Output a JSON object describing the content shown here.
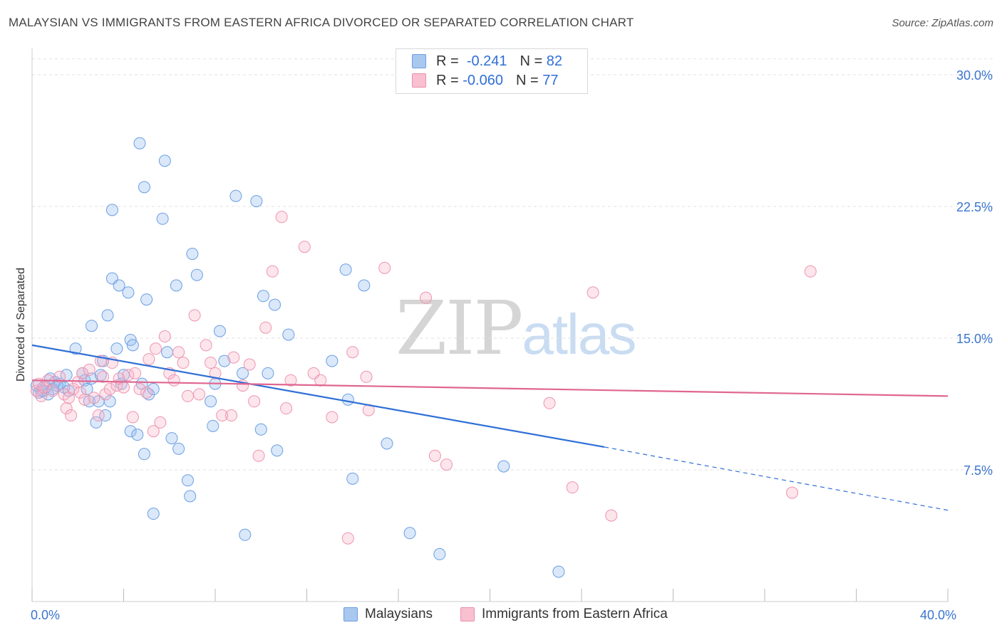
{
  "header": {
    "title": "MALAYSIAN VS IMMIGRANTS FROM EASTERN AFRICA DIVORCED OR SEPARATED CORRELATION CHART",
    "source": "Source: ZipAtlas.com"
  },
  "watermark": {
    "zip": "ZIP",
    "atlas": "atlas"
  },
  "legend": {
    "r_label": "R =",
    "n_label": "N =",
    "rows": [
      {
        "r": "-0.241",
        "n": "82",
        "color": "#a9c8f0",
        "border": "#6b9ee0"
      },
      {
        "r": "-0.060",
        "n": "77",
        "color": "#f8c0d0",
        "border": "#ea8fac"
      }
    ]
  },
  "bottom_legend": [
    {
      "label": "Malaysians",
      "color": "#a9c8f0",
      "border": "#6b9ee0"
    },
    {
      "label": "Immigrants from Eastern Africa",
      "color": "#f8c0d0",
      "border": "#ea8fac"
    }
  ],
  "colors": {
    "blue_fill": "rgba(150,190,240,0.35)",
    "blue_stroke": "#6a9fe2",
    "blue_line": "#2f6fd6",
    "pink_fill": "rgba(248,180,200,0.35)",
    "pink_stroke": "#ec95b0",
    "pink_line": "#e06690",
    "tick_label": "#3a75d0"
  },
  "chart_data": {
    "type": "scatter",
    "title": "MALAYSIAN VS IMMIGRANTS FROM EASTERN AFRICA DIVORCED OR SEPARATED CORRELATION CHART",
    "xlabel": "",
    "ylabel": "Divorced or Separated",
    "xlim": [
      0,
      40
    ],
    "ylim": [
      0,
      31.5
    ],
    "x_ticks_labeled": [
      {
        "v": 0,
        "label": "0.0%"
      },
      {
        "v": 40,
        "label": "40.0%"
      }
    ],
    "x_minor_ticks": [
      0,
      4,
      8,
      12,
      16,
      20,
      24,
      28,
      32,
      36,
      40
    ],
    "y_ticks": [
      {
        "v": 7.5,
        "label": "7.5%"
      },
      {
        "v": 15,
        "label": "15.0%"
      },
      {
        "v": 22.5,
        "label": "22.5%"
      },
      {
        "v": 30,
        "label": "30.0%"
      }
    ],
    "grid": "horizontal-dashed",
    "legend_placement": "top-center",
    "series": [
      {
        "name": "Malaysians",
        "trend": {
          "x0": 0,
          "y0": 14.6,
          "x1": 25,
          "y1": 8.8,
          "dash_to_x": 40,
          "dash_to_y": 5.2
        },
        "points": [
          [
            0.2,
            12.3
          ],
          [
            0.3,
            11.9
          ],
          [
            0.5,
            12.0
          ],
          [
            0.6,
            12.2
          ],
          [
            0.8,
            12.7
          ],
          [
            0.9,
            12.1
          ],
          [
            1.0,
            12.5
          ],
          [
            1.2,
            12.4
          ],
          [
            1.4,
            12.2
          ],
          [
            1.5,
            12.9
          ],
          [
            1.6,
            12.0
          ],
          [
            1.9,
            14.4
          ],
          [
            2.2,
            13.0
          ],
          [
            2.3,
            12.6
          ],
          [
            2.4,
            12.1
          ],
          [
            2.5,
            11.4
          ],
          [
            2.6,
            12.7
          ],
          [
            2.6,
            15.7
          ],
          [
            2.8,
            10.2
          ],
          [
            2.9,
            11.4
          ],
          [
            3.0,
            12.9
          ],
          [
            3.1,
            13.7
          ],
          [
            3.2,
            10.6
          ],
          [
            3.3,
            16.3
          ],
          [
            3.4,
            11.4
          ],
          [
            3.5,
            22.3
          ],
          [
            3.5,
            18.4
          ],
          [
            3.7,
            14.4
          ],
          [
            3.8,
            18.0
          ],
          [
            3.9,
            12.4
          ],
          [
            4.0,
            12.9
          ],
          [
            4.2,
            17.6
          ],
          [
            4.3,
            9.7
          ],
          [
            4.3,
            14.9
          ],
          [
            4.4,
            14.6
          ],
          [
            4.6,
            9.5
          ],
          [
            4.7,
            26.1
          ],
          [
            4.8,
            12.4
          ],
          [
            4.9,
            8.4
          ],
          [
            4.9,
            23.6
          ],
          [
            5.0,
            17.2
          ],
          [
            5.1,
            11.8
          ],
          [
            5.3,
            12.1
          ],
          [
            5.3,
            5.0
          ],
          [
            5.7,
            21.8
          ],
          [
            5.8,
            25.1
          ],
          [
            5.9,
            14.2
          ],
          [
            6.1,
            9.3
          ],
          [
            6.3,
            18.0
          ],
          [
            6.4,
            8.7
          ],
          [
            6.8,
            6.9
          ],
          [
            6.9,
            6.0
          ],
          [
            7.0,
            19.8
          ],
          [
            7.2,
            18.6
          ],
          [
            7.8,
            11.4
          ],
          [
            7.9,
            10.0
          ],
          [
            8.0,
            12.4
          ],
          [
            8.2,
            15.4
          ],
          [
            8.4,
            13.7
          ],
          [
            8.9,
            23.1
          ],
          [
            9.2,
            13.0
          ],
          [
            9.3,
            3.8
          ],
          [
            9.8,
            22.8
          ],
          [
            10.0,
            9.8
          ],
          [
            10.1,
            17.4
          ],
          [
            10.3,
            13.0
          ],
          [
            10.6,
            16.9
          ],
          [
            10.7,
            8.6
          ],
          [
            11.2,
            15.2
          ],
          [
            13.1,
            13.7
          ],
          [
            13.7,
            18.9
          ],
          [
            13.8,
            11.5
          ],
          [
            14.0,
            7.0
          ],
          [
            14.5,
            18.0
          ],
          [
            15.5,
            9.0
          ],
          [
            16.5,
            3.9
          ],
          [
            17.8,
            2.7
          ],
          [
            20.6,
            7.7
          ],
          [
            23.0,
            1.7
          ],
          [
            0.4,
            12.0
          ],
          [
            0.7,
            11.8
          ],
          [
            1.1,
            12.3
          ]
        ]
      },
      {
        "name": "Immigrants from Eastern Africa",
        "trend": {
          "x0": 0,
          "y0": 12.6,
          "x1": 40,
          "y1": 11.7
        },
        "points": [
          [
            0.2,
            12.0
          ],
          [
            0.3,
            12.4
          ],
          [
            0.4,
            11.7
          ],
          [
            0.5,
            12.2
          ],
          [
            0.7,
            12.6
          ],
          [
            0.9,
            12.0
          ],
          [
            1.2,
            12.8
          ],
          [
            1.4,
            11.8
          ],
          [
            1.5,
            11.0
          ],
          [
            1.6,
            11.6
          ],
          [
            1.7,
            10.6
          ],
          [
            1.8,
            12.1
          ],
          [
            2.0,
            12.5
          ],
          [
            2.1,
            11.9
          ],
          [
            2.2,
            13.0
          ],
          [
            2.3,
            11.5
          ],
          [
            2.5,
            13.2
          ],
          [
            2.7,
            11.6
          ],
          [
            2.9,
            10.6
          ],
          [
            3.0,
            13.7
          ],
          [
            3.1,
            12.8
          ],
          [
            3.2,
            11.8
          ],
          [
            3.4,
            12.1
          ],
          [
            3.5,
            13.6
          ],
          [
            3.7,
            12.3
          ],
          [
            3.8,
            12.7
          ],
          [
            4.0,
            12.2
          ],
          [
            4.2,
            12.9
          ],
          [
            4.4,
            10.5
          ],
          [
            4.5,
            13.0
          ],
          [
            4.7,
            12.1
          ],
          [
            5.0,
            11.9
          ],
          [
            5.1,
            13.8
          ],
          [
            5.3,
            9.7
          ],
          [
            5.4,
            14.4
          ],
          [
            5.6,
            10.2
          ],
          [
            5.8,
            15.1
          ],
          [
            6.0,
            13.0
          ],
          [
            6.2,
            12.6
          ],
          [
            6.4,
            14.2
          ],
          [
            6.6,
            13.6
          ],
          [
            6.8,
            11.7
          ],
          [
            7.1,
            16.3
          ],
          [
            7.3,
            11.8
          ],
          [
            7.6,
            14.6
          ],
          [
            7.8,
            13.6
          ],
          [
            8.0,
            13.0
          ],
          [
            8.3,
            10.6
          ],
          [
            8.7,
            10.6
          ],
          [
            8.8,
            13.9
          ],
          [
            9.2,
            12.3
          ],
          [
            9.5,
            13.5
          ],
          [
            9.7,
            11.4
          ],
          [
            9.9,
            8.3
          ],
          [
            10.2,
            15.6
          ],
          [
            10.5,
            18.8
          ],
          [
            10.9,
            21.9
          ],
          [
            11.1,
            11.0
          ],
          [
            11.3,
            12.6
          ],
          [
            11.9,
            20.2
          ],
          [
            12.3,
            13.0
          ],
          [
            12.6,
            12.6
          ],
          [
            13.1,
            10.5
          ],
          [
            13.8,
            3.6
          ],
          [
            14.0,
            14.2
          ],
          [
            14.6,
            12.8
          ],
          [
            14.7,
            10.9
          ],
          [
            15.4,
            19.0
          ],
          [
            17.2,
            17.3
          ],
          [
            17.6,
            8.3
          ],
          [
            18.1,
            7.8
          ],
          [
            22.6,
            11.3
          ],
          [
            23.6,
            6.5
          ],
          [
            24.5,
            17.6
          ],
          [
            25.3,
            4.9
          ],
          [
            33.2,
            6.2
          ],
          [
            34.0,
            18.8
          ]
        ]
      }
    ]
  }
}
